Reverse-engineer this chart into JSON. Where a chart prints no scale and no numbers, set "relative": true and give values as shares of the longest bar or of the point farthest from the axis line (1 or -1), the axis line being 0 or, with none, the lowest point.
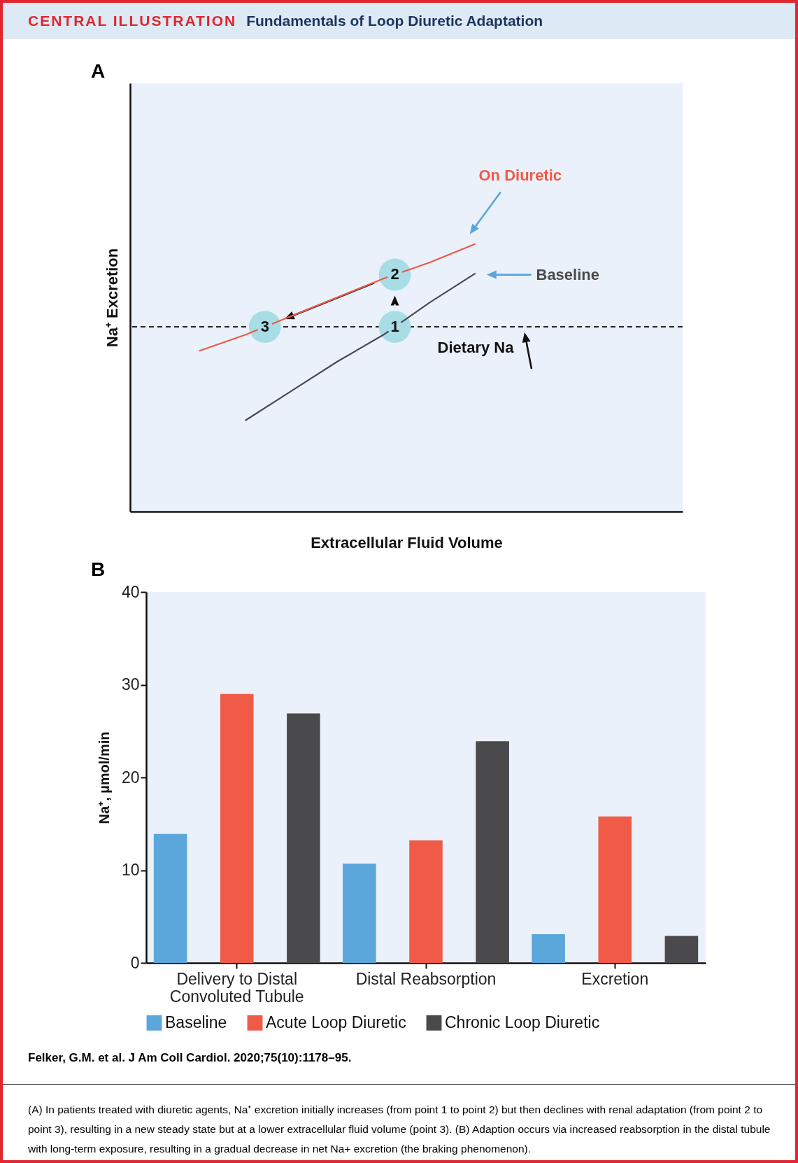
{
  "chart_data": [
    {
      "type": "other",
      "title": "CENTRAL ILLUSTRATION",
      "subtitle": "Fundamentals of Loop Diuretic Adaptation"
    },
    {
      "type": "line",
      "xlabel": "Extracellular Fluid Volume",
      "ylabel": "Na⁺ Excretion",
      "relative": true,
      "grid": false,
      "categories": [
        null,
        null,
        null,
        null,
        null,
        null,
        null,
        null,
        null,
        null,
        null,
        null
      ],
      "series": [
        {
          "name": "On Diuretic",
          "color": "#ee5a45",
          "values": [
            null,
            0.6,
            0.66,
            0.73,
            0.8,
            0.87,
            0.93,
            1.0,
            null,
            null,
            null,
            null
          ]
        },
        {
          "name": "Baseline",
          "color": "#4a4a4c",
          "values": [
            null,
            null,
            0.34,
            0.45,
            0.56,
            0.66,
            0.78,
            0.89,
            null,
            null,
            null,
            null
          ]
        }
      ],
      "ref_lines": [
        {
          "axis": "y",
          "value": 0.69,
          "label": "Dietary Na",
          "line_style": "dashed",
          "color": "#222222"
        }
      ],
      "annotations": [
        "A",
        "1",
        "2",
        "3"
      ]
    },
    {
      "type": "bar",
      "ylabel": "Na⁺, µmol/min",
      "categories": [
        "Delivery to Distal Convoluted Tubule",
        "Distal Reabsorption",
        "Excretion"
      ],
      "ylim": [
        0,
        40
      ],
      "yticks": [
        0,
        10,
        20,
        30,
        40
      ],
      "grid": false,
      "legend": "bottom",
      "series": [
        {
          "name": "Baseline",
          "color": "#5ba6db",
          "values": [
            13.9,
            10.7,
            3.1
          ]
        },
        {
          "name": "Acute Loop Diuretic",
          "color": "#ef5b47",
          "values": [
            29.0,
            13.2,
            15.8
          ]
        },
        {
          "name": "Chronic Loop Diuretic",
          "color": "#4a4a4c",
          "values": [
            26.9,
            23.9,
            2.9
          ]
        }
      ],
      "annotations": [
        "B",
        "Felker, G.M. et al. J Am Coll Cardiol. 2020;75(10):1178–95.",
        "(A) In patients treated with diuretic agents, Na⁺ excretion initially increases (from point 1 to point 2) but then declines with renal adaptation (from point 2 to point 3), resulting in a new steady state but at a lower extracellular fluid volume (point 3). (B) Adaption occurs via increased reabsorption in the distal tubule with long-term exposure, resulting in a gradual decrease in net Na+ excretion (the braking phenomenon)."
      ]
    }
  ]
}
